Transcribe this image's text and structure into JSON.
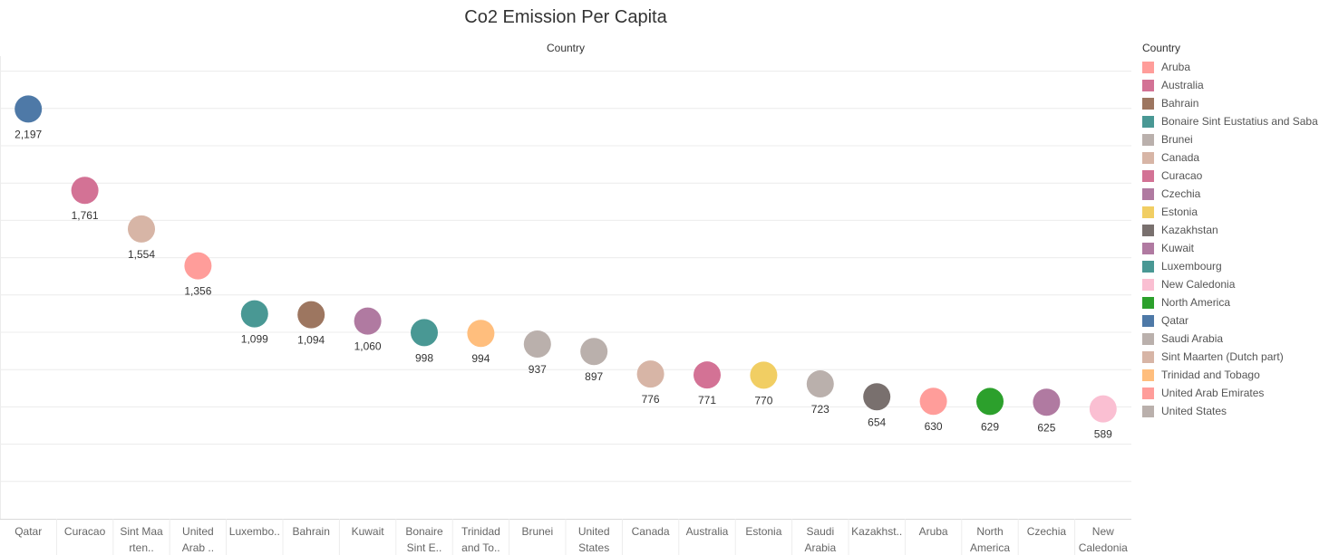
{
  "chart_data": {
    "type": "scatter",
    "title": "Co2 Emission Per Capita",
    "column_header": "Country",
    "ylim": [
      0,
      2500
    ],
    "grid": true,
    "legend_placement": "right",
    "categories_display": [
      [
        "Qatar"
      ],
      [
        "Curacao"
      ],
      [
        "Sint Maa",
        "rten.."
      ],
      [
        "United",
        "Arab .."
      ],
      [
        "Luxembo.."
      ],
      [
        "Bahrain"
      ],
      [
        "Kuwait"
      ],
      [
        "Bonaire",
        "Sint E.."
      ],
      [
        "Trinidad",
        "and To.."
      ],
      [
        "Brunei"
      ],
      [
        "United",
        "States"
      ],
      [
        "Canada"
      ],
      [
        "Australia"
      ],
      [
        "Estonia"
      ],
      [
        "Saudi",
        "Arabia"
      ],
      [
        "Kazakhst.."
      ],
      [
        "Aruba"
      ],
      [
        "North",
        "America"
      ],
      [
        "Czechia"
      ],
      [
        "New",
        "Caledonia"
      ]
    ],
    "points": [
      {
        "country": "Qatar",
        "value": 2197,
        "label": "2,197",
        "color": "#4e79a7"
      },
      {
        "country": "Curacao",
        "value": 1761,
        "label": "1,761",
        "color": "#d37295"
      },
      {
        "country": "Sint Maarten (Dutch part)",
        "value": 1554,
        "label": "1,554",
        "color": "#d7b5a6"
      },
      {
        "country": "United Arab Emirates",
        "value": 1356,
        "label": "1,356",
        "color": "#ff9d9a"
      },
      {
        "country": "Luxembourg",
        "value": 1099,
        "label": "1,099",
        "color": "#499894"
      },
      {
        "country": "Bahrain",
        "value": 1094,
        "label": "1,094",
        "color": "#9d7660"
      },
      {
        "country": "Kuwait",
        "value": 1060,
        "label": "1,060",
        "color": "#b07aa1"
      },
      {
        "country": "Bonaire Sint Eustatius and Saba",
        "value": 998,
        "label": "998",
        "color": "#499894"
      },
      {
        "country": "Trinidad and Tobago",
        "value": 994,
        "label": "994",
        "color": "#ffbe7d"
      },
      {
        "country": "Brunei",
        "value": 937,
        "label": "937",
        "color": "#bab0ac"
      },
      {
        "country": "United States",
        "value": 897,
        "label": "897",
        "color": "#bab0ac"
      },
      {
        "country": "Canada",
        "value": 776,
        "label": "776",
        "color": "#d7b5a6"
      },
      {
        "country": "Australia",
        "value": 771,
        "label": "771",
        "color": "#d37295"
      },
      {
        "country": "Estonia",
        "value": 770,
        "label": "770",
        "color": "#f1ce63"
      },
      {
        "country": "Saudi Arabia",
        "value": 723,
        "label": "723",
        "color": "#bab0ac"
      },
      {
        "country": "Kazakhstan",
        "value": 654,
        "label": "654",
        "color": "#79706e"
      },
      {
        "country": "Aruba",
        "value": 630,
        "label": "630",
        "color": "#ff9d9a"
      },
      {
        "country": "North America",
        "value": 629,
        "label": "629",
        "color": "#2ca02c"
      },
      {
        "country": "Czechia",
        "value": 625,
        "label": "625",
        "color": "#b07aa1"
      },
      {
        "country": "New Caledonia",
        "value": 589,
        "label": "589",
        "color": "#fabfd2"
      }
    ],
    "legend": {
      "title": "Country",
      "items": [
        {
          "name": "Aruba",
          "color": "#ff9d9a"
        },
        {
          "name": "Australia",
          "color": "#d37295"
        },
        {
          "name": "Bahrain",
          "color": "#9d7660"
        },
        {
          "name": "Bonaire Sint Eustatius and Saba",
          "color": "#499894"
        },
        {
          "name": "Brunei",
          "color": "#bab0ac"
        },
        {
          "name": "Canada",
          "color": "#d7b5a6"
        },
        {
          "name": "Curacao",
          "color": "#d37295"
        },
        {
          "name": "Czechia",
          "color": "#b07aa1"
        },
        {
          "name": "Estonia",
          "color": "#f1ce63"
        },
        {
          "name": "Kazakhstan",
          "color": "#79706e"
        },
        {
          "name": "Kuwait",
          "color": "#b07aa1"
        },
        {
          "name": "Luxembourg",
          "color": "#499894"
        },
        {
          "name": "New Caledonia",
          "color": "#fabfd2"
        },
        {
          "name": "North America",
          "color": "#2ca02c"
        },
        {
          "name": "Qatar",
          "color": "#4e79a7"
        },
        {
          "name": "Saudi Arabia",
          "color": "#bab0ac"
        },
        {
          "name": "Sint Maarten (Dutch part)",
          "color": "#d7b5a6"
        },
        {
          "name": "Trinidad and Tobago",
          "color": "#ffbe7d"
        },
        {
          "name": "United Arab Emirates",
          "color": "#ff9d9a"
        },
        {
          "name": "United States",
          "color": "#bab0ac"
        }
      ]
    }
  }
}
